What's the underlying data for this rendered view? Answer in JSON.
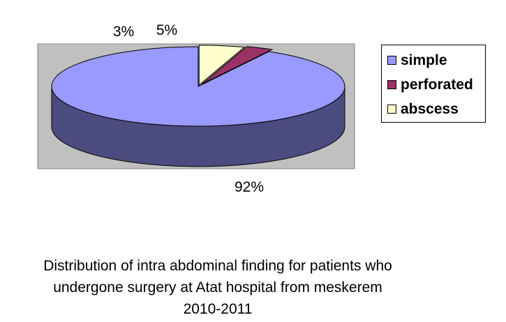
{
  "chart_data": {
    "type": "pie",
    "labels": [
      "simple",
      "perforated",
      "abscess"
    ],
    "values": [
      92,
      3,
      5
    ],
    "data_labels": [
      "92%",
      "3%",
      "5%"
    ],
    "colors": [
      "#9999FF",
      "#993366",
      "#FFFFCC"
    ],
    "side_colors": [
      "#4B4B7F",
      "#4A1932",
      "#7F7F66"
    ],
    "plot_background": "#C0C0C0",
    "three_d": true,
    "exploded_slices": [
      "perforated",
      "abscess"
    ],
    "legend_position": "right"
  },
  "caption": {
    "line1": "Distribution of intra abdominal finding for patients who",
    "line2": "undergone surgery at Atat hospital from meskerem",
    "line3": "2010-2011"
  }
}
